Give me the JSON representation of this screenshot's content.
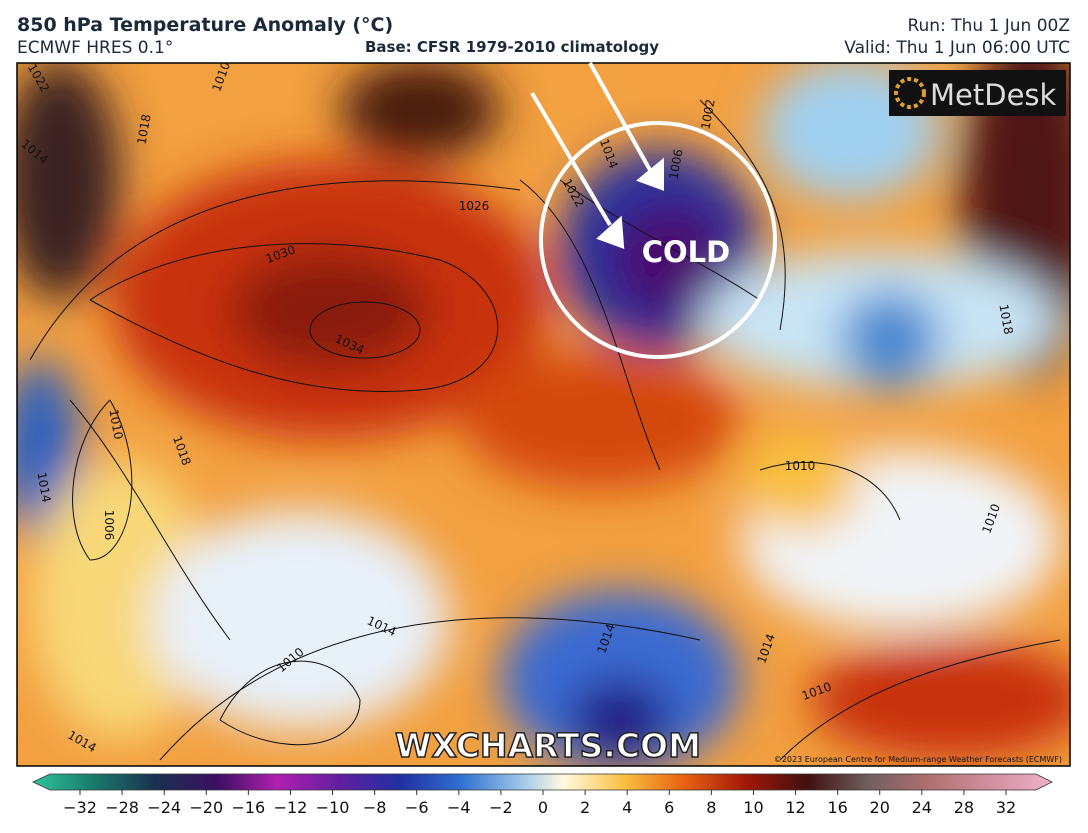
{
  "header": {
    "title": "850 hPa Temperature Anomaly (°C)",
    "model": "ECMWF HRES 0.1°",
    "base": "Base: CFSR 1979-2010 climatology",
    "run": "Run: Thu 1 Jun 00Z",
    "valid": "Valid: Thu 1 Jun 06:00 UTC"
  },
  "map": {
    "annotation": "COLD",
    "logo": "MetDesk",
    "watermark": "WXCHARTS.COM",
    "copyright": "©2023 European Centre for Medium-range Weather Forecasts (ECMWF)",
    "isobar_labels": [
      "1022",
      "1018",
      "1014",
      "1010",
      "1026",
      "1030",
      "1034",
      "1010",
      "1018",
      "1014",
      "1006",
      "1014",
      "1010",
      "1014",
      "1014",
      "1010",
      "1018",
      "1022",
      "1014",
      "1006",
      "1002",
      "1010",
      "1014",
      "1010"
    ]
  },
  "colorbar": {
    "ticks": [
      "−32",
      "−28",
      "−24",
      "−20",
      "−16",
      "−12",
      "−10",
      "−8",
      "−6",
      "−4",
      "−2",
      "0",
      "2",
      "4",
      "6",
      "8",
      "10",
      "12",
      "16",
      "20",
      "24",
      "28",
      "32"
    ]
  }
}
